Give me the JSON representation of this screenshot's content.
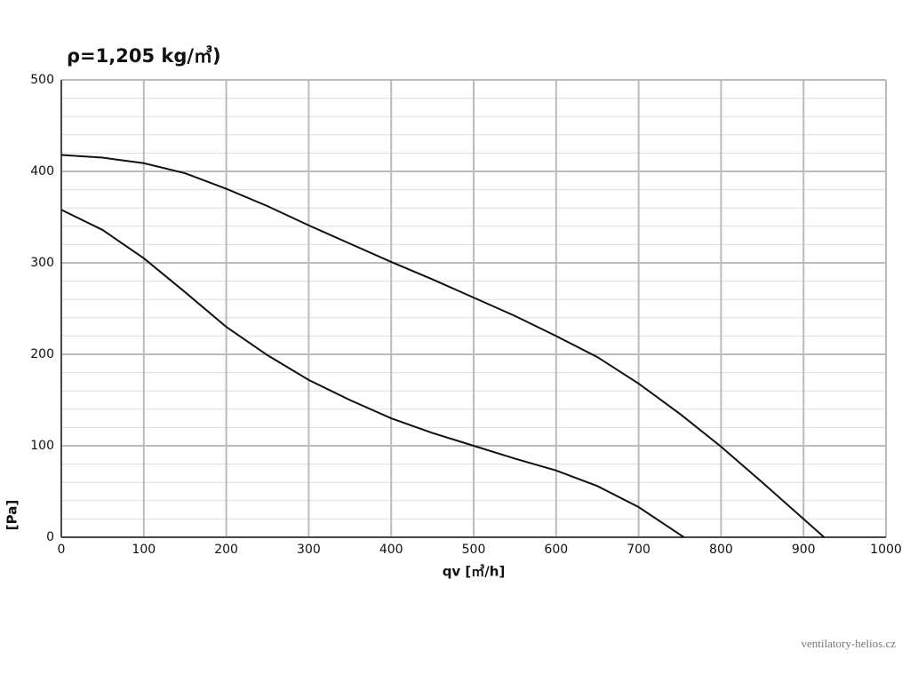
{
  "chart_data": {
    "type": "line",
    "title": "ρ=1,205 kg/㎥)",
    "x_label": "qv [㎥/h]",
    "y_label": "[Pa]",
    "watermark": "ventilatory-helios.cz",
    "series": [
      {
        "color": "#111111",
        "x": [
          0,
          50,
          100,
          150,
          200,
          250,
          300,
          350,
          400,
          450,
          500,
          550,
          600,
          650,
          700,
          750,
          800,
          850,
          900,
          925
        ],
        "values": [
          418,
          415,
          409,
          398,
          381,
          362,
          341,
          321,
          301,
          282,
          262,
          242,
          220,
          197,
          168,
          135,
          99,
          60,
          20,
          0
        ]
      },
      {
        "color": "#111111",
        "x": [
          0,
          50,
          100,
          150,
          200,
          250,
          300,
          350,
          400,
          450,
          500,
          550,
          600,
          650,
          700,
          730,
          755
        ],
        "values": [
          358,
          336,
          305,
          268,
          230,
          199,
          172,
          150,
          130,
          114,
          100,
          86,
          73,
          56,
          33,
          15,
          0
        ]
      }
    ],
    "xlim": [
      0,
      1000
    ],
    "xticks": [
      0,
      100,
      200,
      300,
      400,
      500,
      600,
      700,
      800,
      900,
      1000
    ],
    "ylim": [
      0,
      500
    ],
    "yticks": [
      0,
      100,
      200,
      300,
      400,
      500
    ],
    "grid": true
  }
}
